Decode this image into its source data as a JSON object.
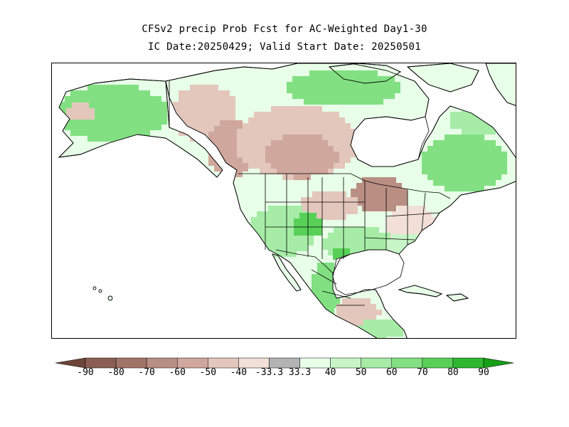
{
  "title": {
    "line1": "CFSv2 precip Prob Fcst for AC-Weighted Day1-30",
    "line2": "IC Date:20250429; Valid Start Date: 20250501"
  },
  "legend": {
    "labels": [
      "-90",
      "-80",
      "-70",
      "-60",
      "-50",
      "-40",
      "-33.3",
      "33.3",
      "40",
      "50",
      "60",
      "70",
      "80",
      "90"
    ],
    "colors": [
      "#6e4438",
      "#8a5e52",
      "#a27468",
      "#b98f83",
      "#cfa79c",
      "#e3c7bd",
      "#f1dfd8",
      "#b3b3b3",
      "#e8ffe8",
      "#c8f5c8",
      "#a6eca6",
      "#82e082",
      "#58d058",
      "#2fb82f",
      "#179e17"
    ]
  },
  "map": {
    "land_color": "#e8ffe8",
    "ocean_color": "#ffffff",
    "border_color": "#000000"
  }
}
